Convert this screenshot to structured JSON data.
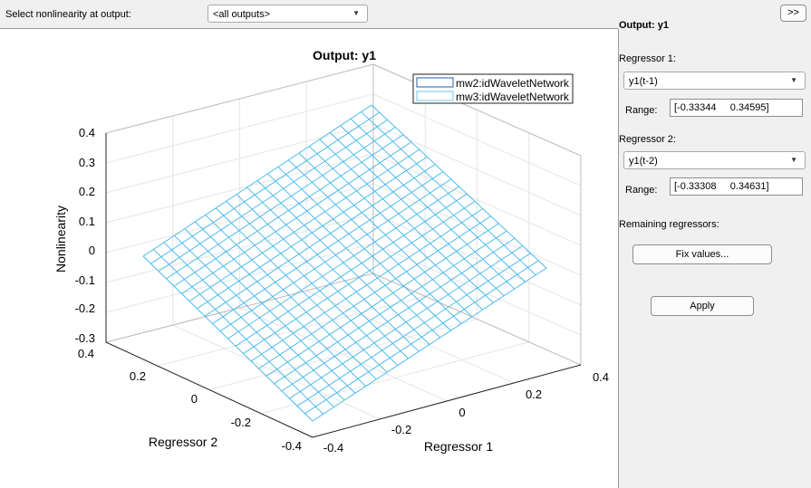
{
  "topbar": {
    "label": "Select nonlinearity at output:",
    "select_value": "<all outputs>"
  },
  "side": {
    "expand_button": ">>",
    "output_title": "Output: y1",
    "regressor1_label": "Regressor 1:",
    "regressor1_value": "y1(t-1)",
    "range_label": "Range:",
    "regressor1_range": "[-0.33344     0.34595]",
    "regressor2_label": "Regressor 2:",
    "regressor2_value": "y1(t-2)",
    "regressor2_range": "[-0.33308     0.34631]",
    "remaining_label": "Remaining regressors:",
    "fix_button": "Fix values...",
    "apply_button": "Apply"
  },
  "plot": {
    "title": "Output: y1",
    "zlabel": "Nonlinearity",
    "xlabel": "Regressor 1",
    "ylabel": "Regressor 2",
    "ztick_labels": [
      "0.4",
      "0.3",
      "0.2",
      "0.1",
      "0",
      "-0.1",
      "-0.2",
      "-0.3"
    ],
    "xtick_labels": [
      "-0.4",
      "-0.2",
      "0",
      "0.2",
      "0.4"
    ],
    "ytick_labels": [
      "0.4",
      "0.2",
      "0",
      "-0.2",
      "-0.4"
    ],
    "legend": [
      "mw2:idWaveletNetwork",
      "mw3:idWaveletNetwork"
    ],
    "colors": {
      "mesh": "#3fb6ec",
      "legend1": "#1f5fa8",
      "legend2": "#6cc7ef"
    }
  }
}
